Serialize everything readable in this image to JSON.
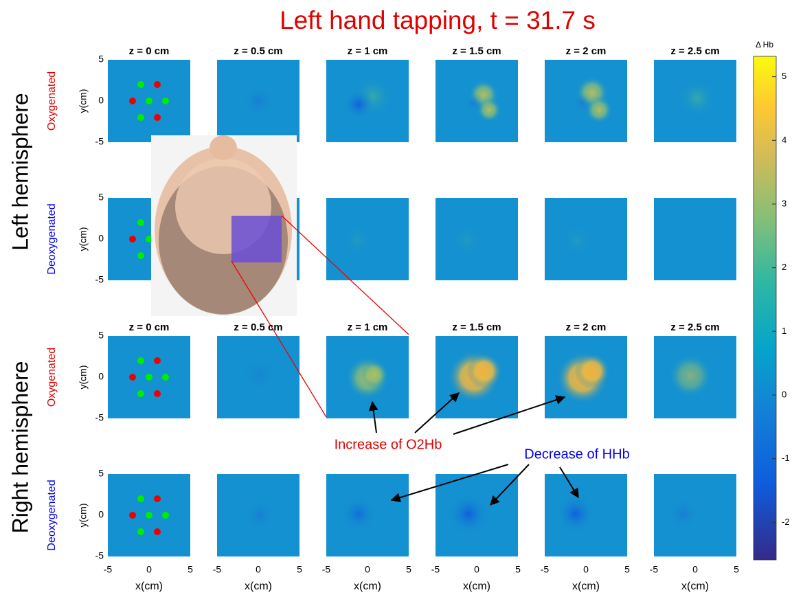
{
  "title": "Left hand tapping, t = 31.7 s",
  "hemispheres": [
    "Left hemisphere",
    "Right hemisphere"
  ],
  "rows": [
    "Oxygenated",
    "Deoxygenated",
    "Oxygenated",
    "Deoxygenated"
  ],
  "depths": [
    "z = 0 cm",
    "z = 0.5 cm",
    "z = 1 cm",
    "z = 1.5 cm",
    "z = 2 cm",
    "z = 2.5 cm"
  ],
  "y_axis_label": "y(cm)",
  "x_axis_label": "x(cm)",
  "axis_ticks": [
    -5,
    0,
    5
  ],
  "colorbar": {
    "label": "Δ Hb",
    "lim": [
      -2.59,
      5.32
    ],
    "ticks": [
      -2,
      -1,
      0,
      1,
      2,
      3,
      4,
      5
    ]
  },
  "annotations": [
    "Increase of O2Hb",
    "Decrease of HHb"
  ]
}
